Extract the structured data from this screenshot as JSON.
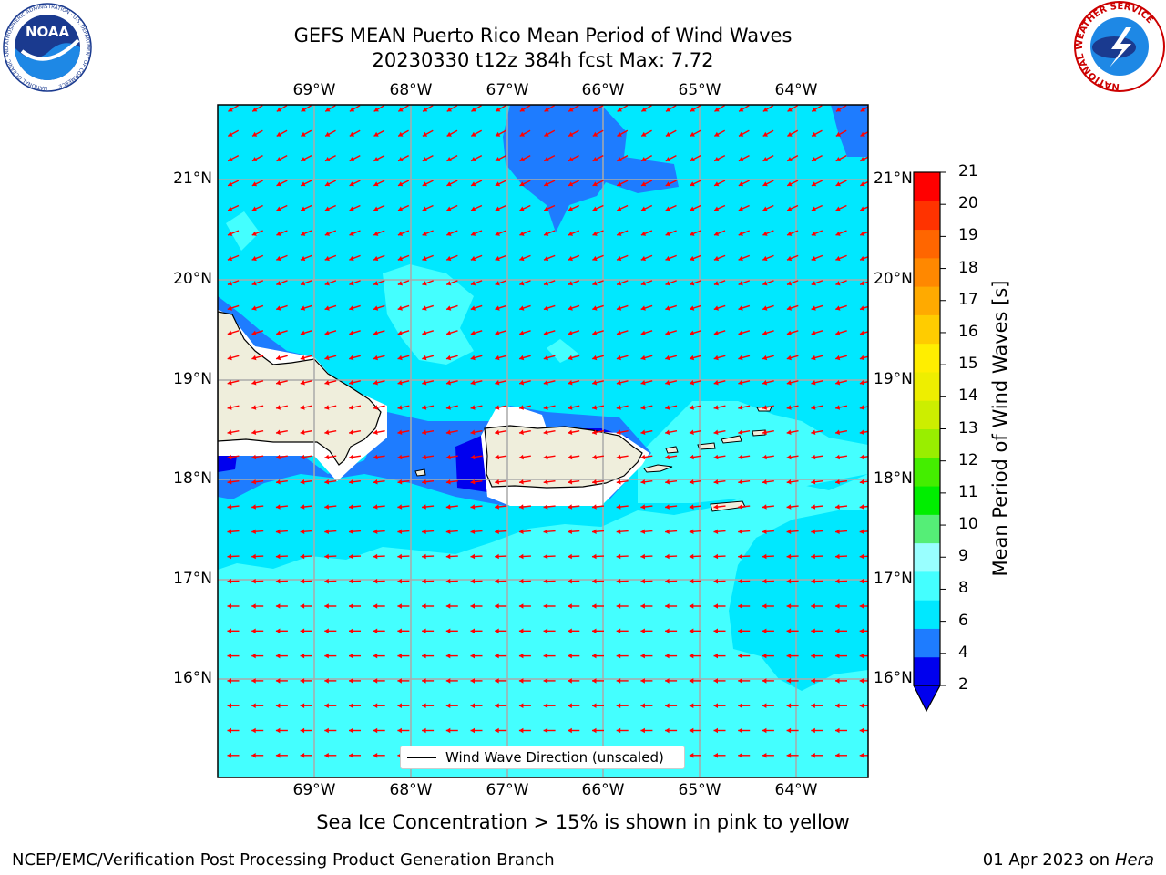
{
  "header": {
    "title_line1": "GEFS MEAN Puerto Rico Mean Period of Wind Waves",
    "title_line2": "20230330 t12z 384h fcst   Max: 7.72"
  },
  "map": {
    "lon_labels": [
      "69°W",
      "68°W",
      "67°W",
      "66°W",
      "65°W",
      "64°W"
    ],
    "lat_labels": [
      "21°N",
      "20°N",
      "19°N",
      "18°N",
      "17°N",
      "16°N"
    ],
    "legend_label": "Wind Wave Direction (unscaled)",
    "arrow_color": "#ff0000",
    "land_color": "#efeedc",
    "colors": {
      "deep_blue": "#0000ee",
      "blue": "#1e7cff",
      "cyan": "#00e8ff",
      "light_cyan": "#44ffff"
    }
  },
  "colorbar": {
    "label": "Mean Period of Wind Waves [s]",
    "ticks": [
      "21",
      "20",
      "19",
      "18",
      "17",
      "16",
      "15",
      "14",
      "13",
      "12",
      "11",
      "10",
      "9",
      "8",
      "6",
      "4",
      "2"
    ],
    "colors": [
      "#0000ee",
      "#1e7cff",
      "#00e8ff",
      "#44ffff",
      "#99ffff",
      "#55ee77",
      "#00ee00",
      "#44ee00",
      "#99ee00",
      "#ccee00",
      "#eeee00",
      "#ffee00",
      "#ffcc00",
      "#ffaa00",
      "#ff8800",
      "#ff6600",
      "#ff3300",
      "#ff0000"
    ]
  },
  "caption": "Sea Ice Concentration > 15% is shown in pink to yellow",
  "footer": {
    "left": "NCEP/EMC/Verification Post Processing Product Generation Branch",
    "right_prefix": "01 Apr 2023 on ",
    "right_host": "Hera"
  },
  "logos": {
    "noaa_text": "NOAA",
    "noaa_ring": "NATIONAL OCEANIC AND ATMOSPHERIC ADMINISTRATION · U.S. DEPARTMENT OF COMMERCE",
    "nws_ring": "NATIONAL WEATHER SERVICE"
  }
}
